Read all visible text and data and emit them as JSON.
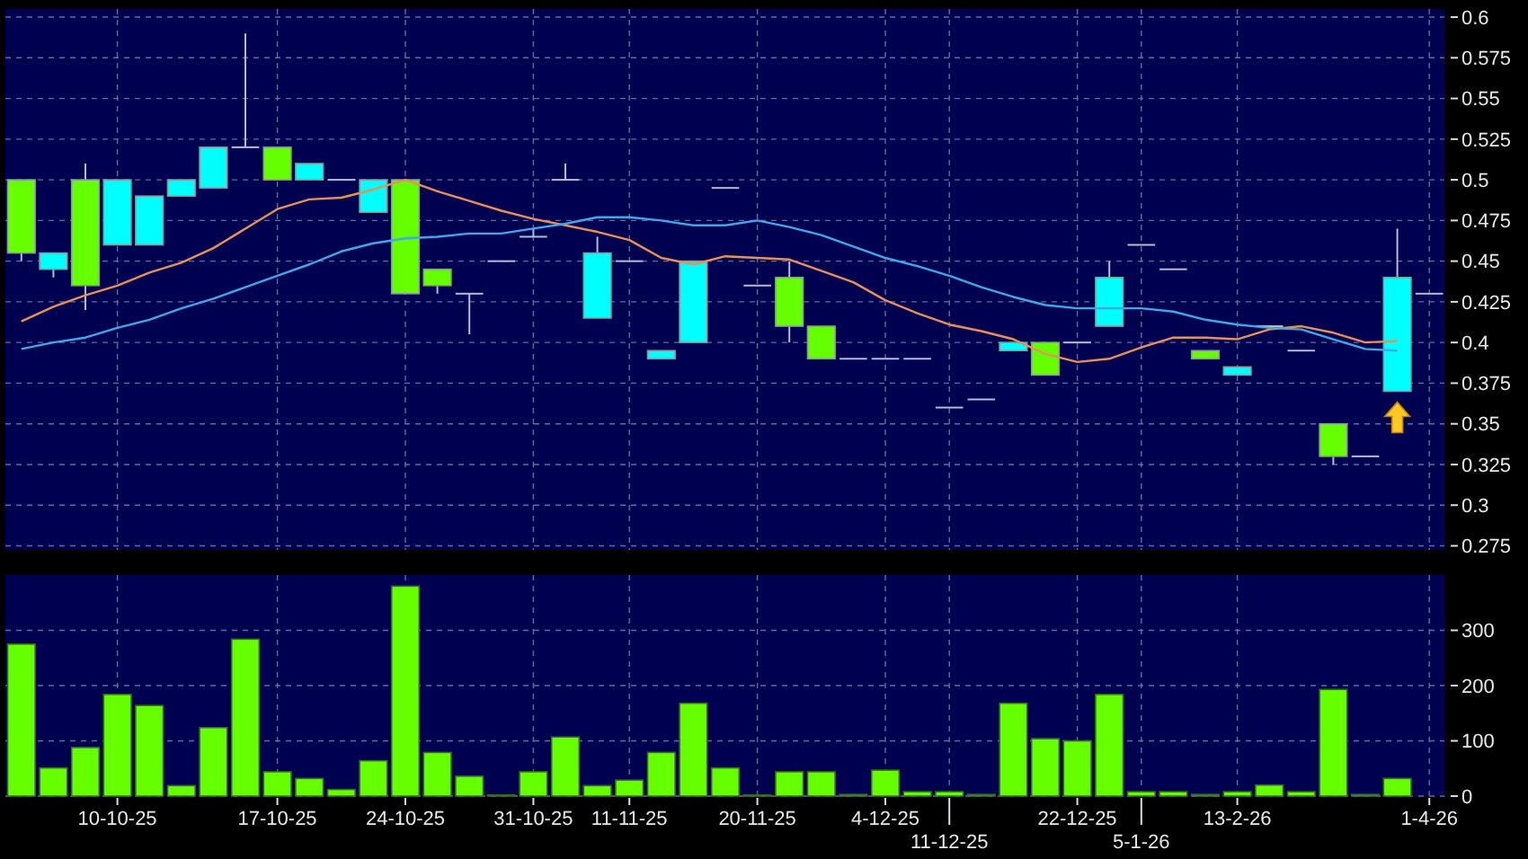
{
  "chart_data": [
    {
      "type": "candlestick",
      "categories": [
        null,
        null,
        null,
        null,
        null,
        null,
        null,
        null,
        null,
        null,
        null,
        null,
        null,
        null,
        null,
        null,
        null,
        null,
        null,
        null,
        null,
        null,
        null,
        null,
        null,
        null,
        null,
        null,
        null,
        null,
        null,
        null,
        null,
        null,
        null,
        null,
        null,
        null,
        null,
        null,
        null,
        null,
        null,
        null,
        null
      ],
      "ohlc": [
        [
          0.5,
          0.5,
          0.45,
          0.455
        ],
        [
          0.445,
          0.455,
          0.44,
          0.455
        ],
        [
          0.5,
          0.51,
          0.42,
          0.435
        ],
        [
          0.46,
          0.5,
          0.46,
          0.5
        ],
        [
          0.46,
          0.49,
          0.46,
          0.49
        ],
        [
          0.49,
          0.5,
          0.49,
          0.5
        ],
        [
          0.495,
          0.52,
          0.495,
          0.52
        ],
        [
          0.52,
          0.59,
          0.52,
          0.52
        ],
        [
          0.52,
          0.52,
          0.5,
          0.5
        ],
        [
          0.5,
          0.51,
          0.5,
          0.51
        ],
        [
          0.5,
          0.5,
          0.5,
          0.5
        ],
        [
          0.48,
          0.5,
          0.48,
          0.5
        ],
        [
          0.5,
          0.5,
          0.43,
          0.43
        ],
        [
          0.445,
          0.445,
          0.43,
          0.435
        ],
        [
          0.43,
          0.43,
          0.405,
          0.43
        ],
        [
          0.45,
          0.45,
          0.45,
          0.45
        ],
        [
          0.465,
          0.47,
          0.465,
          0.465
        ],
        [
          0.5,
          0.51,
          0.5,
          0.5
        ],
        [
          0.415,
          0.465,
          0.415,
          0.455
        ],
        [
          0.45,
          0.45,
          0.45,
          0.45
        ],
        [
          0.39,
          0.395,
          0.39,
          0.395
        ],
        [
          0.4,
          0.45,
          0.4,
          0.45
        ],
        [
          0.495,
          0.495,
          0.495,
          0.495
        ],
        [
          0.435,
          0.435,
          0.435,
          0.435
        ],
        [
          0.44,
          0.45,
          0.4,
          0.41
        ],
        [
          0.41,
          0.41,
          0.39,
          0.39
        ],
        [
          0.39,
          0.39,
          0.39,
          0.39
        ],
        [
          0.39,
          0.39,
          0.39,
          0.39
        ],
        [
          0.39,
          0.39,
          0.39,
          0.39
        ],
        [
          0.36,
          0.36,
          0.36,
          0.36
        ],
        [
          0.365,
          0.365,
          0.365,
          0.365
        ],
        [
          0.395,
          0.4,
          0.395,
          0.4
        ],
        [
          0.4,
          0.4,
          0.38,
          0.38
        ],
        [
          0.4,
          0.4,
          0.4,
          0.4
        ],
        [
          0.41,
          0.45,
          0.41,
          0.44
        ],
        [
          0.46,
          0.46,
          0.46,
          0.46
        ],
        [
          0.445,
          0.445,
          0.445,
          0.445
        ],
        [
          0.395,
          0.395,
          0.39,
          0.39
        ],
        [
          0.38,
          0.385,
          0.38,
          0.385
        ],
        [
          0.41,
          0.41,
          0.41,
          0.41
        ],
        [
          0.395,
          0.395,
          0.395,
          0.395
        ],
        [
          0.35,
          0.35,
          0.325,
          0.33
        ],
        [
          0.33,
          0.33,
          0.33,
          0.33
        ],
        [
          0.37,
          0.47,
          0.37,
          0.44
        ],
        [
          0.43,
          0.43,
          0.43,
          0.43
        ]
      ],
      "colors": [
        "#66ff00",
        "#00ffff",
        "#66ff00",
        "#00ffff",
        "#00ffff",
        "#00ffff",
        "#00ffff",
        "#b8b8d8",
        "#66ff00",
        "#00ffff",
        "#b8b8d8",
        "#00ffff",
        "#66ff00",
        "#66ff00",
        "#b8b8d8",
        "#b8b8d8",
        "#b8b8d8",
        "#b8b8d8",
        "#00ffff",
        "#b8b8d8",
        "#00ffff",
        "#00ffff",
        "#b8b8d8",
        "#b8b8d8",
        "#66ff00",
        "#66ff00",
        "#b8b8d8",
        "#b8b8d8",
        "#b8b8d8",
        "#b8b8d8",
        "#b8b8d8",
        "#00ffff",
        "#66ff00",
        "#b8b8d8",
        "#00ffff",
        "#b8b8d8",
        "#b8b8d8",
        "#66ff00",
        "#00ffff",
        "#b8b8d8",
        "#b8b8d8",
        "#66ff00",
        "#b8b8d8",
        "#00ffff",
        "#b8b8d8"
      ],
      "series": [
        {
          "type": "line",
          "color": "#e8905a",
          "values": [
            0.413,
            0.422,
            0.429,
            0.435,
            0.443,
            0.449,
            0.458,
            0.47,
            0.482,
            0.488,
            0.489,
            0.494,
            0.5,
            0.493,
            0.487,
            0.481,
            0.476,
            0.472,
            0.468,
            0.463,
            0.452,
            0.448,
            0.453,
            0.452,
            0.451,
            0.444,
            0.437,
            0.426,
            0.418,
            0.411,
            0.407,
            0.402,
            0.393,
            0.388,
            0.39,
            0.397,
            0.403,
            0.403,
            0.402,
            0.408,
            0.41,
            0.406,
            0.4,
            0.401,
            null
          ]
        },
        {
          "type": "line",
          "color": "#3fa8e8",
          "values": [
            0.396,
            0.4,
            0.403,
            0.409,
            0.414,
            0.421,
            0.427,
            0.434,
            0.441,
            0.448,
            0.456,
            0.461,
            0.464,
            0.465,
            0.467,
            0.467,
            0.47,
            0.473,
            0.477,
            0.477,
            0.475,
            0.472,
            0.472,
            0.475,
            0.471,
            0.466,
            0.459,
            0.452,
            0.447,
            0.441,
            0.434,
            0.428,
            0.423,
            0.421,
            0.421,
            0.421,
            0.419,
            0.414,
            0.411,
            0.409,
            0.408,
            0.402,
            0.396,
            0.395,
            null
          ]
        }
      ],
      "ylim": [
        0.2725,
        0.605
      ],
      "yticks": [
        0.275,
        0.3,
        0.325,
        0.35,
        0.375,
        0.4,
        0.425,
        0.45,
        0.475,
        0.5,
        0.525,
        0.55,
        0.575,
        0.6
      ],
      "grid": true
    },
    {
      "type": "bar",
      "categories": [
        null,
        null,
        null,
        "10-10-25",
        null,
        null,
        null,
        null,
        "17-10-25",
        null,
        null,
        null,
        "24-10-25",
        null,
        null,
        null,
        "31-10-25",
        null,
        null,
        "11-11-25",
        null,
        null,
        null,
        "20-11-25",
        null,
        null,
        null,
        "4-12-25",
        null,
        "11-12-25",
        null,
        null,
        null,
        "22-12-25",
        null,
        "5-1-26",
        null,
        null,
        "13-2-26",
        null,
        null,
        null,
        null,
        null,
        "1-4-26"
      ],
      "values": [
        275,
        51,
        88,
        184,
        164,
        19,
        124,
        284,
        44,
        32,
        12,
        64,
        380,
        79,
        36,
        2,
        44,
        107,
        19,
        29,
        79,
        168,
        51,
        2,
        44,
        44,
        3,
        47,
        8,
        8,
        3,
        168,
        104,
        100,
        184,
        8,
        8,
        3,
        8,
        20,
        8,
        193,
        3,
        32,
        0
      ],
      "color": "#66ff00",
      "ylim": [
        0,
        400
      ],
      "yticks": [
        0,
        100,
        200,
        300
      ],
      "grid": true
    }
  ]
}
